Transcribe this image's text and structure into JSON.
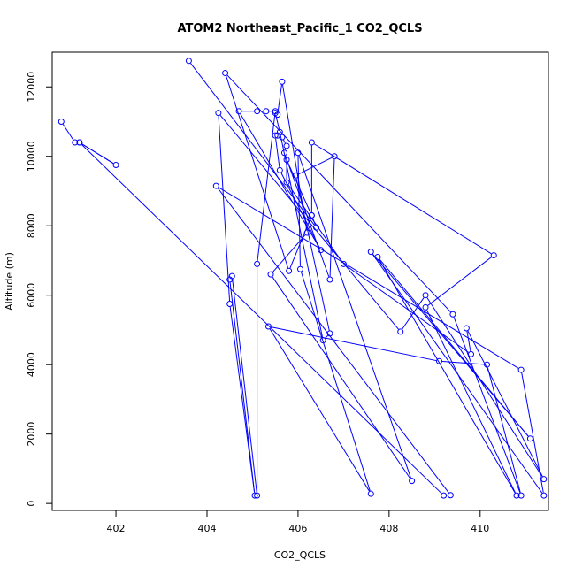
{
  "chart_data": {
    "type": "line",
    "title": "ATOM2 Northeast_Pacific_1 CO2_QCLS",
    "xlabel": "CO2_QCLS",
    "ylabel": "Altitude (m)",
    "xlim": [
      400.6,
      411.5
    ],
    "ylim": [
      -200,
      13000
    ],
    "xticks": [
      402,
      404,
      406,
      408,
      410
    ],
    "yticks": [
      0,
      2000,
      4000,
      6000,
      8000,
      10000,
      12000
    ],
    "xtick_labels": [
      "402",
      "404",
      "406",
      "408",
      "410"
    ],
    "ytick_labels": [
      "0",
      "2000",
      "4000",
      "6000",
      "8000",
      "10000",
      "12000"
    ],
    "grid": false,
    "legend": "none",
    "line_color": "#0000ff",
    "marker": "open-circle",
    "series": [
      {
        "points": [
          [
            400.8,
            11000
          ],
          [
            401.1,
            10400
          ],
          [
            401.2,
            10400
          ],
          [
            402.0,
            9750
          ],
          [
            401.2,
            10400
          ],
          [
            409.2,
            230
          ],
          [
            409.35,
            240
          ],
          [
            404.2,
            9150
          ],
          [
            410.9,
            3850
          ],
          [
            411.4,
            230
          ],
          [
            407.6,
            7250
          ],
          [
            411.1,
            1870
          ],
          [
            407.75,
            7100
          ],
          [
            410.8,
            230
          ],
          [
            408.8,
            5650
          ],
          [
            410.3,
            7150
          ],
          [
            406.3,
            10400
          ],
          [
            406.3,
            8300
          ],
          [
            405.75,
            9900
          ],
          [
            405.75,
            9250
          ],
          [
            407.0,
            6900
          ],
          [
            409.8,
            4300
          ],
          [
            409.7,
            5050
          ],
          [
            411.4,
            700
          ],
          [
            408.8,
            6000
          ],
          [
            408.25,
            4950
          ],
          [
            404.25,
            11250
          ],
          [
            404.5,
            5750
          ],
          [
            405.05,
            230
          ],
          [
            404.5,
            6450
          ],
          [
            404.55,
            6550
          ],
          [
            405.1,
            230
          ],
          [
            405.1,
            6900
          ],
          [
            405.5,
            11300
          ],
          [
            405.3,
            11300
          ],
          [
            405.1,
            11300
          ],
          [
            404.7,
            11300
          ],
          [
            406.5,
            7300
          ],
          [
            405.6,
            9600
          ],
          [
            405.5,
            10600
          ],
          [
            405.55,
            10600
          ],
          [
            405.65,
            10550
          ],
          [
            405.75,
            10300
          ],
          [
            405.7,
            10100
          ],
          [
            406.7,
            6450
          ],
          [
            406.8,
            10000
          ],
          [
            405.95,
            9450
          ],
          [
            406.7,
            4900
          ],
          [
            406.55,
            4700
          ],
          [
            405.6,
            10700
          ],
          [
            405.5,
            11250
          ],
          [
            405.55,
            11200
          ],
          [
            405.65,
            12150
          ],
          [
            406.2,
            7800
          ],
          [
            405.4,
            6600
          ],
          [
            408.5,
            650
          ],
          [
            406.0,
            10100
          ],
          [
            406.05,
            6750
          ],
          [
            407.6,
            280
          ],
          [
            405.35,
            5100
          ],
          [
            409.1,
            4100
          ],
          [
            410.15,
            4000
          ],
          [
            410.9,
            230
          ],
          [
            409.4,
            5450
          ],
          [
            404.4,
            12400
          ],
          [
            405.8,
            6700
          ],
          [
            406.3,
            8300
          ],
          [
            406.4,
            7950
          ],
          [
            403.6,
            12750
          ]
        ]
      }
    ]
  }
}
